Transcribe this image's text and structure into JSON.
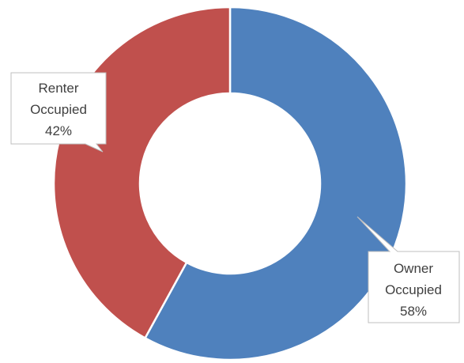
{
  "chart_data": {
    "type": "pie",
    "variant": "doughnut",
    "title": "",
    "series": [
      {
        "slices": [
          {
            "label": "Owner Occupied",
            "value": 58,
            "percent_label": "58%",
            "color": "#4F81BD"
          },
          {
            "label": "Renter Occupied",
            "value": 42,
            "percent_label": "42%",
            "color": "#C0504D"
          }
        ]
      }
    ],
    "legend": "none",
    "data_labels": "callout"
  },
  "callouts": [
    {
      "lines": [
        "Renter",
        "Occupied",
        "42%"
      ]
    },
    {
      "lines": [
        "Owner",
        "Occupied",
        "58%"
      ]
    }
  ]
}
